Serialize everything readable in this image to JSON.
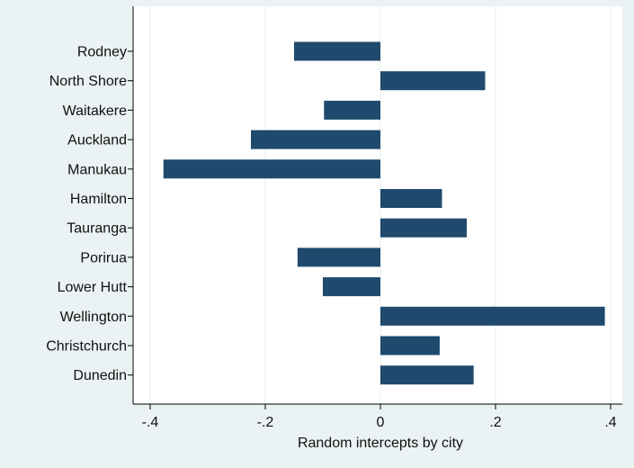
{
  "colors": {
    "background": "#eaf2f3",
    "plot_background": "#ffffff",
    "bar": "#1f4a6e",
    "grid": "#e6ecee",
    "axis": "#000000"
  },
  "chart_data": {
    "type": "bar",
    "orientation": "horizontal",
    "xlabel": "Random intercepts by city",
    "xlim": [
      -0.43,
      0.42
    ],
    "x_ticks": [
      -0.4,
      -0.2,
      0,
      0.2,
      0.4
    ],
    "x_tick_labels": [
      "-.4",
      "-.2",
      "0",
      ".2",
      ".4"
    ],
    "grid": true,
    "categories": [
      "Rodney",
      "North Shore",
      "Waitakere",
      "Auckland",
      "Manukau",
      "Hamilton",
      "Tauranga",
      "Porirua",
      "Lower Hutt",
      "Wellington",
      "Christchurch",
      "Dunedin"
    ],
    "values": [
      -0.15,
      0.182,
      -0.098,
      -0.225,
      -0.377,
      0.107,
      0.15,
      -0.144,
      -0.1,
      0.39,
      0.103,
      0.162
    ]
  }
}
